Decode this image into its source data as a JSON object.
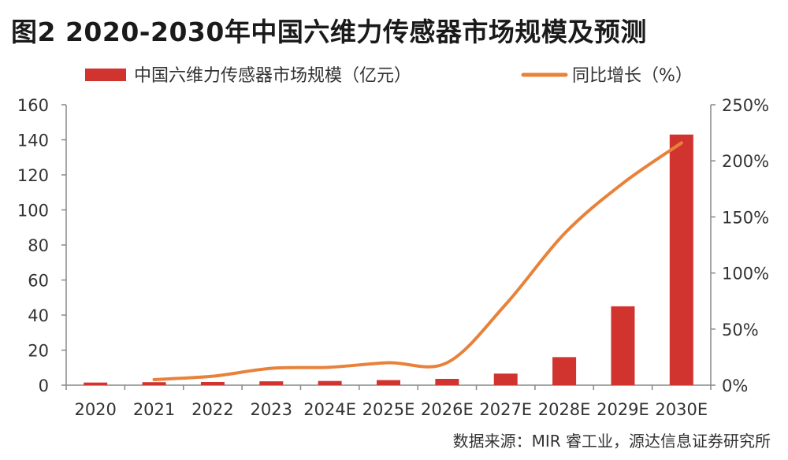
{
  "chart_data": {
    "type": "bar+line",
    "title": "图2  2020-2030年中国六维力传感器市场规模及预测",
    "source": "数据来源：MIR 睿工业，源达信息证券研究所",
    "categories": [
      "2020",
      "2021",
      "2022",
      "2023",
      "2024E",
      "2025E",
      "2026E",
      "2027E",
      "2028E",
      "2029E",
      "2030E"
    ],
    "series": [
      {
        "name": "中国六维力传感器市场规模（亿元）",
        "type": "bar",
        "axis": "left",
        "color": "#d1332f",
        "values": [
          1.5,
          1.7,
          1.8,
          2.2,
          2.4,
          2.9,
          3.6,
          6.6,
          16,
          45,
          143
        ]
      },
      {
        "name": "同比增长（%）",
        "type": "line",
        "axis": "right",
        "color": "#e8823a",
        "values": [
          null,
          5,
          8,
          15,
          16,
          20,
          20,
          72,
          135,
          180,
          216
        ]
      }
    ],
    "y_left": {
      "min": 0,
      "max": 160,
      "ticks": [
        0,
        20,
        40,
        60,
        80,
        100,
        120,
        140,
        160
      ]
    },
    "y_right": {
      "min": 0,
      "max": 250,
      "ticks": [
        "0%",
        "50%",
        "100%",
        "150%",
        "200%",
        "250%"
      ]
    },
    "legend_position": "top",
    "grid": false
  }
}
